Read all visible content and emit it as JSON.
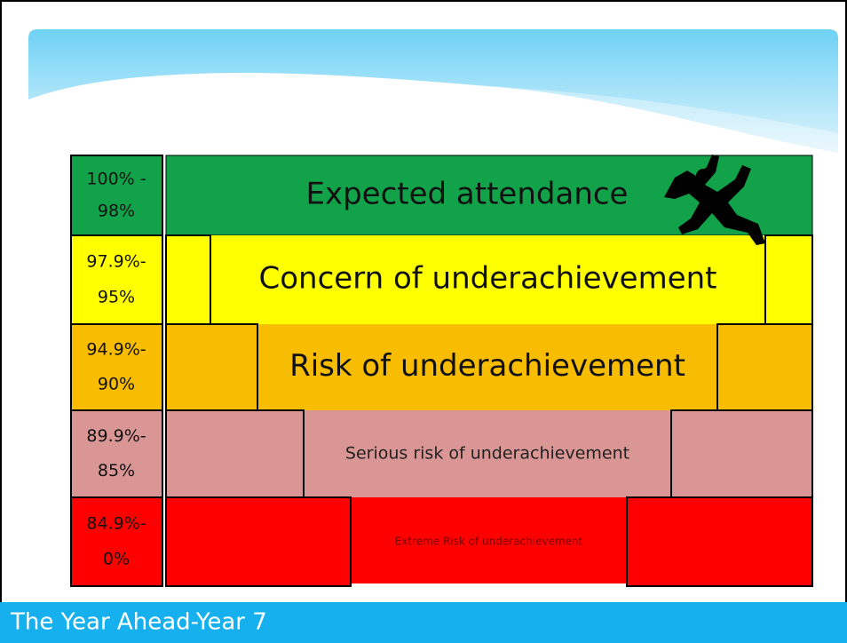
{
  "rows": [
    {
      "range_lines": [
        "100% -",
        "98%"
      ],
      "label": "Expected attendance"
    },
    {
      "range_lines": [
        "97.9%-",
        "95%"
      ],
      "label": "Concern of underachievement"
    },
    {
      "range_lines": [
        "94.9%-",
        "90%"
      ],
      "label": "Risk of underachievement"
    },
    {
      "range_lines": [
        "89.9%-",
        "85%"
      ],
      "label": "Serious risk of underachievement"
    },
    {
      "range_lines": [
        "84.9%-",
        "0%"
      ],
      "label": "Extreme Risk of underachievement"
    }
  ],
  "footer": {
    "title": "The Year Ahead-Year 7"
  }
}
